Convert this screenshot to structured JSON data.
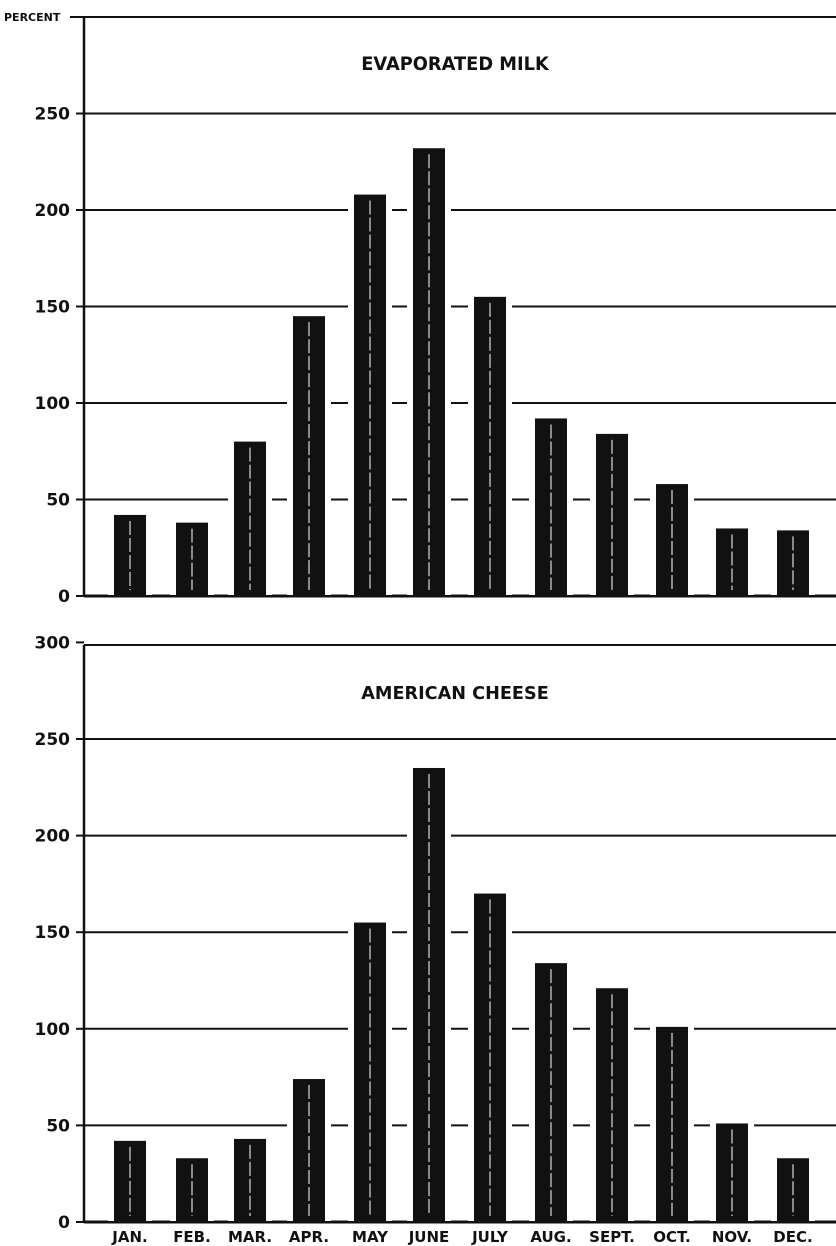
{
  "chart_data": [
    {
      "type": "bar",
      "title": "EVAPORATED MILK",
      "ylabel": "PERCENT",
      "categories": [
        "JAN.",
        "FEB.",
        "MAR.",
        "APR.",
        "MAY",
        "JUNE",
        "JULY",
        "AUG.",
        "SEPT.",
        "OCT.",
        "NOV.",
        "DEC."
      ],
      "values": [
        42,
        38,
        80,
        145,
        208,
        232,
        155,
        92,
        84,
        58,
        35,
        34
      ],
      "ylim": [
        0,
        250
      ],
      "yticks": [
        "0",
        "50",
        "100",
        "150",
        "200",
        "250"
      ],
      "grid": true
    },
    {
      "type": "bar",
      "title": "AMERICAN CHEESE",
      "categories": [
        "JAN.",
        "FEB.",
        "MAR.",
        "APR.",
        "MAY",
        "JUNE",
        "JULY",
        "AUG.",
        "SEPT.",
        "OCT.",
        "NOV.",
        "DEC."
      ],
      "values": [
        42,
        33,
        43,
        74,
        155,
        235,
        170,
        134,
        121,
        101,
        51,
        33
      ],
      "ylim": [
        0,
        300
      ],
      "yticks": [
        "0",
        "50",
        "100",
        "150",
        "200",
        "250",
        "300"
      ],
      "grid": true
    }
  ]
}
